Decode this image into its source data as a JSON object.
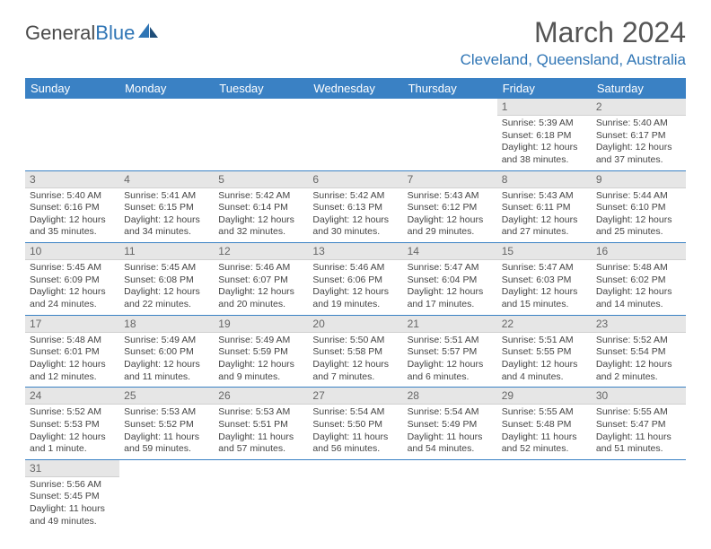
{
  "brand": {
    "part1": "General",
    "part2": "Blue"
  },
  "title": "March 2024",
  "location": "Cleveland, Queensland, Australia",
  "colors": {
    "header_bg": "#3a81c4",
    "accent": "#2f75b5",
    "daynum_bg": "#e6e6e6"
  },
  "day_headers": [
    "Sunday",
    "Monday",
    "Tuesday",
    "Wednesday",
    "Thursday",
    "Friday",
    "Saturday"
  ],
  "weeks": [
    [
      null,
      null,
      null,
      null,
      null,
      {
        "num": "1",
        "sunrise": "Sunrise: 5:39 AM",
        "sunset": "Sunset: 6:18 PM",
        "daylight": "Daylight: 12 hours and 38 minutes."
      },
      {
        "num": "2",
        "sunrise": "Sunrise: 5:40 AM",
        "sunset": "Sunset: 6:17 PM",
        "daylight": "Daylight: 12 hours and 37 minutes."
      }
    ],
    [
      {
        "num": "3",
        "sunrise": "Sunrise: 5:40 AM",
        "sunset": "Sunset: 6:16 PM",
        "daylight": "Daylight: 12 hours and 35 minutes."
      },
      {
        "num": "4",
        "sunrise": "Sunrise: 5:41 AM",
        "sunset": "Sunset: 6:15 PM",
        "daylight": "Daylight: 12 hours and 34 minutes."
      },
      {
        "num": "5",
        "sunrise": "Sunrise: 5:42 AM",
        "sunset": "Sunset: 6:14 PM",
        "daylight": "Daylight: 12 hours and 32 minutes."
      },
      {
        "num": "6",
        "sunrise": "Sunrise: 5:42 AM",
        "sunset": "Sunset: 6:13 PM",
        "daylight": "Daylight: 12 hours and 30 minutes."
      },
      {
        "num": "7",
        "sunrise": "Sunrise: 5:43 AM",
        "sunset": "Sunset: 6:12 PM",
        "daylight": "Daylight: 12 hours and 29 minutes."
      },
      {
        "num": "8",
        "sunrise": "Sunrise: 5:43 AM",
        "sunset": "Sunset: 6:11 PM",
        "daylight": "Daylight: 12 hours and 27 minutes."
      },
      {
        "num": "9",
        "sunrise": "Sunrise: 5:44 AM",
        "sunset": "Sunset: 6:10 PM",
        "daylight": "Daylight: 12 hours and 25 minutes."
      }
    ],
    [
      {
        "num": "10",
        "sunrise": "Sunrise: 5:45 AM",
        "sunset": "Sunset: 6:09 PM",
        "daylight": "Daylight: 12 hours and 24 minutes."
      },
      {
        "num": "11",
        "sunrise": "Sunrise: 5:45 AM",
        "sunset": "Sunset: 6:08 PM",
        "daylight": "Daylight: 12 hours and 22 minutes."
      },
      {
        "num": "12",
        "sunrise": "Sunrise: 5:46 AM",
        "sunset": "Sunset: 6:07 PM",
        "daylight": "Daylight: 12 hours and 20 minutes."
      },
      {
        "num": "13",
        "sunrise": "Sunrise: 5:46 AM",
        "sunset": "Sunset: 6:06 PM",
        "daylight": "Daylight: 12 hours and 19 minutes."
      },
      {
        "num": "14",
        "sunrise": "Sunrise: 5:47 AM",
        "sunset": "Sunset: 6:04 PM",
        "daylight": "Daylight: 12 hours and 17 minutes."
      },
      {
        "num": "15",
        "sunrise": "Sunrise: 5:47 AM",
        "sunset": "Sunset: 6:03 PM",
        "daylight": "Daylight: 12 hours and 15 minutes."
      },
      {
        "num": "16",
        "sunrise": "Sunrise: 5:48 AM",
        "sunset": "Sunset: 6:02 PM",
        "daylight": "Daylight: 12 hours and 14 minutes."
      }
    ],
    [
      {
        "num": "17",
        "sunrise": "Sunrise: 5:48 AM",
        "sunset": "Sunset: 6:01 PM",
        "daylight": "Daylight: 12 hours and 12 minutes."
      },
      {
        "num": "18",
        "sunrise": "Sunrise: 5:49 AM",
        "sunset": "Sunset: 6:00 PM",
        "daylight": "Daylight: 12 hours and 11 minutes."
      },
      {
        "num": "19",
        "sunrise": "Sunrise: 5:49 AM",
        "sunset": "Sunset: 5:59 PM",
        "daylight": "Daylight: 12 hours and 9 minutes."
      },
      {
        "num": "20",
        "sunrise": "Sunrise: 5:50 AM",
        "sunset": "Sunset: 5:58 PM",
        "daylight": "Daylight: 12 hours and 7 minutes."
      },
      {
        "num": "21",
        "sunrise": "Sunrise: 5:51 AM",
        "sunset": "Sunset: 5:57 PM",
        "daylight": "Daylight: 12 hours and 6 minutes."
      },
      {
        "num": "22",
        "sunrise": "Sunrise: 5:51 AM",
        "sunset": "Sunset: 5:55 PM",
        "daylight": "Daylight: 12 hours and 4 minutes."
      },
      {
        "num": "23",
        "sunrise": "Sunrise: 5:52 AM",
        "sunset": "Sunset: 5:54 PM",
        "daylight": "Daylight: 12 hours and 2 minutes."
      }
    ],
    [
      {
        "num": "24",
        "sunrise": "Sunrise: 5:52 AM",
        "sunset": "Sunset: 5:53 PM",
        "daylight": "Daylight: 12 hours and 1 minute."
      },
      {
        "num": "25",
        "sunrise": "Sunrise: 5:53 AM",
        "sunset": "Sunset: 5:52 PM",
        "daylight": "Daylight: 11 hours and 59 minutes."
      },
      {
        "num": "26",
        "sunrise": "Sunrise: 5:53 AM",
        "sunset": "Sunset: 5:51 PM",
        "daylight": "Daylight: 11 hours and 57 minutes."
      },
      {
        "num": "27",
        "sunrise": "Sunrise: 5:54 AM",
        "sunset": "Sunset: 5:50 PM",
        "daylight": "Daylight: 11 hours and 56 minutes."
      },
      {
        "num": "28",
        "sunrise": "Sunrise: 5:54 AM",
        "sunset": "Sunset: 5:49 PM",
        "daylight": "Daylight: 11 hours and 54 minutes."
      },
      {
        "num": "29",
        "sunrise": "Sunrise: 5:55 AM",
        "sunset": "Sunset: 5:48 PM",
        "daylight": "Daylight: 11 hours and 52 minutes."
      },
      {
        "num": "30",
        "sunrise": "Sunrise: 5:55 AM",
        "sunset": "Sunset: 5:47 PM",
        "daylight": "Daylight: 11 hours and 51 minutes."
      }
    ],
    [
      {
        "num": "31",
        "sunrise": "Sunrise: 5:56 AM",
        "sunset": "Sunset: 5:45 PM",
        "daylight": "Daylight: 11 hours and 49 minutes."
      },
      null,
      null,
      null,
      null,
      null,
      null
    ]
  ]
}
